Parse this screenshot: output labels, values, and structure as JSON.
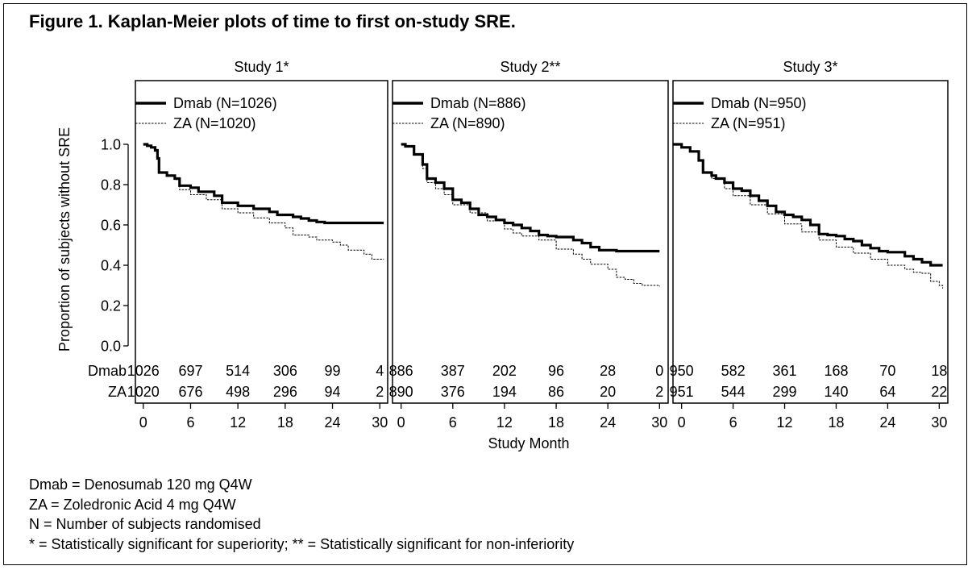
{
  "title": "Figure 1. Kaplan-Meier plots of time to first on-study SRE.",
  "footnotes": [
    "Dmab = Denosumab 120 mg Q4W",
    "ZA = Zoledronic Acid 4 mg Q4W",
    "N = Number of subjects randomised",
    "* = Statistically significant for superiority; ** = Statistically significant for non-inferiority"
  ],
  "chart_data": {
    "type": "line",
    "ylabel": "Proportion of subjects without SRE",
    "xlabel": "Study Month",
    "ylim": [
      0,
      1.0
    ],
    "xlim": [
      -1,
      31
    ],
    "yticks": [
      "0.0",
      "0.2",
      "0.4",
      "0.6",
      "0.8",
      "1.0"
    ],
    "xticks": [
      0,
      6,
      12,
      18,
      24,
      30
    ],
    "risk_row_labels": [
      "Dmab",
      "ZA"
    ],
    "panels": [
      {
        "title": "Study 1*",
        "legend": [
          "Dmab (N=1026)",
          "ZA (N=1020)"
        ],
        "at_risk": {
          "Dmab": [
            "1026",
            "697",
            "514",
            "306",
            "99",
            "4"
          ],
          "ZA": [
            "1020",
            "676",
            "498",
            "296",
            "94",
            "2"
          ]
        },
        "series": [
          {
            "name": "Dmab",
            "style": "solid",
            "points": [
              [
                0,
                1.0
              ],
              [
                0.5,
                0.993
              ],
              [
                1,
                0.985
              ],
              [
                1.5,
                0.97
              ],
              [
                1.8,
                0.93
              ],
              [
                2,
                0.86
              ],
              [
                3,
                0.845
              ],
              [
                4,
                0.83
              ],
              [
                4.6,
                0.795
              ],
              [
                6,
                0.785
              ],
              [
                7,
                0.765
              ],
              [
                9,
                0.745
              ],
              [
                10,
                0.71
              ],
              [
                12,
                0.695
              ],
              [
                14,
                0.68
              ],
              [
                16,
                0.665
              ],
              [
                17,
                0.65
              ],
              [
                19,
                0.64
              ],
              [
                20,
                0.632
              ],
              [
                21,
                0.622
              ],
              [
                22,
                0.615
              ],
              [
                23,
                0.61
              ],
              [
                25,
                0.61
              ],
              [
                28,
                0.61
              ],
              [
                30.5,
                0.61
              ]
            ]
          },
          {
            "name": "ZA",
            "style": "dashed",
            "points": [
              [
                0,
                1.0
              ],
              [
                0.5,
                0.993
              ],
              [
                1,
                0.985
              ],
              [
                1.5,
                0.97
              ],
              [
                1.8,
                0.93
              ],
              [
                2,
                0.86
              ],
              [
                3,
                0.845
              ],
              [
                4,
                0.825
              ],
              [
                4.6,
                0.775
              ],
              [
                6,
                0.75
              ],
              [
                8,
                0.725
              ],
              [
                10,
                0.68
              ],
              [
                12,
                0.66
              ],
              [
                14,
                0.635
              ],
              [
                16,
                0.61
              ],
              [
                18,
                0.585
              ],
              [
                19,
                0.55
              ],
              [
                21,
                0.54
              ],
              [
                22,
                0.525
              ],
              [
                24,
                0.515
              ],
              [
                25,
                0.5
              ],
              [
                26,
                0.475
              ],
              [
                28,
                0.455
              ],
              [
                29,
                0.43
              ],
              [
                30.5,
                0.43
              ]
            ]
          }
        ]
      },
      {
        "title": "Study 2**",
        "legend": [
          "Dmab (N=886)",
          "ZA (N=890)"
        ],
        "at_risk": {
          "Dmab": [
            "886",
            "387",
            "202",
            "96",
            "28",
            "0"
          ],
          "ZA": [
            "890",
            "376",
            "194",
            "86",
            "20",
            "2"
          ]
        },
        "series": [
          {
            "name": "Dmab",
            "style": "solid",
            "points": [
              [
                0,
                1.0
              ],
              [
                0.5,
                0.99
              ],
              [
                1.5,
                0.95
              ],
              [
                2.5,
                0.9
              ],
              [
                3,
                0.83
              ],
              [
                4,
                0.81
              ],
              [
                5,
                0.78
              ],
              [
                6,
                0.725
              ],
              [
                7,
                0.71
              ],
              [
                8,
                0.68
              ],
              [
                9,
                0.65
              ],
              [
                10,
                0.64
              ],
              [
                11,
                0.625
              ],
              [
                12,
                0.61
              ],
              [
                13,
                0.6
              ],
              [
                14,
                0.585
              ],
              [
                15,
                0.57
              ],
              [
                16,
                0.55
              ],
              [
                17,
                0.545
              ],
              [
                18,
                0.54
              ],
              [
                20,
                0.525
              ],
              [
                21,
                0.51
              ],
              [
                22,
                0.49
              ],
              [
                23,
                0.475
              ],
              [
                25,
                0.47
              ],
              [
                28,
                0.47
              ],
              [
                30,
                0.47
              ]
            ]
          },
          {
            "name": "ZA",
            "style": "dashed",
            "points": [
              [
                0,
                1.0
              ],
              [
                0.5,
                0.99
              ],
              [
                1.5,
                0.95
              ],
              [
                2.5,
                0.88
              ],
              [
                3,
                0.81
              ],
              [
                4,
                0.78
              ],
              [
                5,
                0.75
              ],
              [
                6,
                0.7
              ],
              [
                8,
                0.66
              ],
              [
                10,
                0.62
              ],
              [
                12,
                0.58
              ],
              [
                13,
                0.56
              ],
              [
                14,
                0.545
              ],
              [
                16,
                0.525
              ],
              [
                18,
                0.48
              ],
              [
                20,
                0.455
              ],
              [
                21,
                0.43
              ],
              [
                22,
                0.405
              ],
              [
                24,
                0.38
              ],
              [
                25,
                0.34
              ],
              [
                26,
                0.33
              ],
              [
                27,
                0.31
              ],
              [
                28,
                0.3
              ],
              [
                30,
                0.295
              ]
            ]
          }
        ]
      },
      {
        "title": "Study 3*",
        "legend": [
          "Dmab (N=950)",
          "ZA (N=951)"
        ],
        "at_risk": {
          "Dmab": [
            "950",
            "582",
            "361",
            "168",
            "70",
            "18"
          ],
          "ZA": [
            "951",
            "544",
            "299",
            "140",
            "64",
            "22"
          ]
        },
        "series": [
          {
            "name": "Dmab",
            "style": "solid",
            "points": [
              [
                -1,
                1.0
              ],
              [
                0,
                0.985
              ],
              [
                1,
                0.965
              ],
              [
                2,
                0.92
              ],
              [
                2.5,
                0.86
              ],
              [
                3.5,
                0.845
              ],
              [
                4,
                0.83
              ],
              [
                5,
                0.81
              ],
              [
                6,
                0.78
              ],
              [
                7,
                0.77
              ],
              [
                8,
                0.745
              ],
              [
                9,
                0.72
              ],
              [
                10,
                0.695
              ],
              [
                11,
                0.665
              ],
              [
                12,
                0.65
              ],
              [
                13,
                0.64
              ],
              [
                14,
                0.625
              ],
              [
                15,
                0.6
              ],
              [
                16,
                0.555
              ],
              [
                17,
                0.55
              ],
              [
                18,
                0.545
              ],
              [
                19,
                0.53
              ],
              [
                20,
                0.52
              ],
              [
                21,
                0.5
              ],
              [
                22,
                0.485
              ],
              [
                23,
                0.47
              ],
              [
                24,
                0.465
              ],
              [
                26,
                0.445
              ],
              [
                27,
                0.43
              ],
              [
                28,
                0.415
              ],
              [
                29,
                0.4
              ],
              [
                30.4,
                0.4
              ]
            ]
          },
          {
            "name": "ZA",
            "style": "dashed",
            "points": [
              [
                -1,
                1.0
              ],
              [
                0,
                0.985
              ],
              [
                1,
                0.965
              ],
              [
                2,
                0.92
              ],
              [
                2.5,
                0.86
              ],
              [
                3.5,
                0.83
              ],
              [
                5,
                0.78
              ],
              [
                6,
                0.745
              ],
              [
                8,
                0.7
              ],
              [
                10,
                0.655
              ],
              [
                12,
                0.605
              ],
              [
                14,
                0.565
              ],
              [
                16,
                0.525
              ],
              [
                18,
                0.49
              ],
              [
                20,
                0.46
              ],
              [
                22,
                0.43
              ],
              [
                24,
                0.4
              ],
              [
                26,
                0.38
              ],
              [
                27,
                0.365
              ],
              [
                28,
                0.36
              ],
              [
                29,
                0.32
              ],
              [
                30,
                0.3
              ],
              [
                30.4,
                0.285
              ]
            ]
          }
        ]
      }
    ]
  }
}
